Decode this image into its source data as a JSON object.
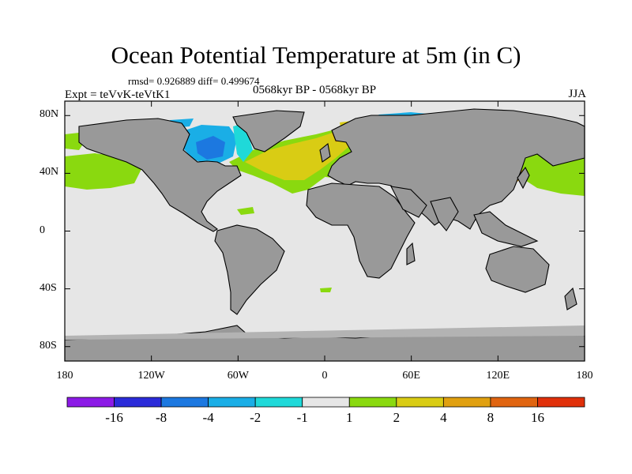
{
  "title": "Ocean Potential Temperature at 5m (in C)",
  "stats_text": "rmsd= 0.926889 diff= 0.499674",
  "left_label": "Expt = teVvK-teVtK1",
  "center_label": "0568kyr BP - 0568kyr BP",
  "right_label": "JJA",
  "map": {
    "lat_ticks": [
      "80N",
      "40N",
      "0",
      "40S",
      "80S"
    ],
    "lon_ticks": [
      "180",
      "120W",
      "60W",
      "0",
      "60E",
      "120E",
      "180"
    ],
    "lat_values": [
      80,
      40,
      0,
      -40,
      -80
    ],
    "lon_values": [
      -180,
      -120,
      -60,
      0,
      60,
      120,
      180
    ],
    "extent": {
      "lon": [
        -180,
        180
      ],
      "lat": [
        -90,
        90
      ]
    },
    "ocean_color": "#e6e6e6",
    "land_color": "#999999"
  },
  "colorbar": {
    "colors": [
      "#8c1ae6",
      "#2b2bd9",
      "#1c78e0",
      "#1aaee6",
      "#1fd9d9",
      "#e6e6e6",
      "#8ad90f",
      "#d9cc14",
      "#e0a010",
      "#e06410",
      "#e0300a"
    ],
    "labels": [
      "-16",
      "-8",
      "-4",
      "-2",
      "-1",
      "1",
      "2",
      "4",
      "8",
      "16"
    ]
  }
}
